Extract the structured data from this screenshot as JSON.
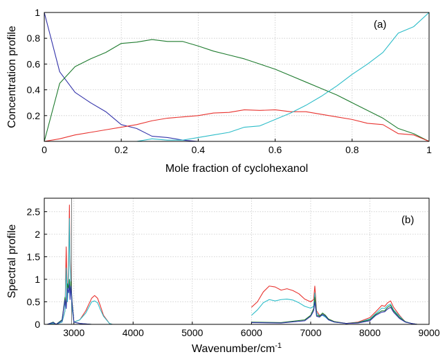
{
  "chart_data": [
    {
      "type": "line",
      "panel_tag": "(a)",
      "xlabel": "Mole fraction of cyclohexanol",
      "ylabel": "Concentration profile",
      "xlim": [
        0,
        1
      ],
      "ylim": [
        0,
        1
      ],
      "xticks": [
        "0",
        "0.2",
        "0.4",
        "0.6",
        "0.8",
        "1"
      ],
      "yticks": [
        "0.2",
        "0.4",
        "0.6",
        "0.8",
        "1"
      ],
      "ytick_values": [
        0.2,
        0.4,
        0.6,
        0.8,
        1.0
      ],
      "xtick_values": [
        0,
        0.2,
        0.4,
        0.6,
        0.8,
        1.0
      ],
      "grid": true,
      "series": [
        {
          "color": "#3333aa",
          "x": [
            0,
            0.04,
            0.08,
            0.12,
            0.16,
            0.2,
            0.24,
            0.28,
            0.32,
            0.36,
            0.4
          ],
          "y": [
            1.0,
            0.54,
            0.38,
            0.3,
            0.23,
            0.13,
            0.1,
            0.04,
            0.03,
            0.01,
            0.0
          ]
        },
        {
          "color": "#1e7b2e",
          "x": [
            0,
            0.04,
            0.08,
            0.12,
            0.16,
            0.2,
            0.24,
            0.28,
            0.32,
            0.36,
            0.4,
            0.44,
            0.48,
            0.52,
            0.56,
            0.6,
            0.64,
            0.68,
            0.72,
            0.76,
            0.8,
            0.84,
            0.88,
            0.92,
            0.96,
            1.0
          ],
          "y": [
            0.0,
            0.45,
            0.58,
            0.64,
            0.69,
            0.76,
            0.77,
            0.79,
            0.775,
            0.775,
            0.74,
            0.7,
            0.67,
            0.64,
            0.6,
            0.56,
            0.51,
            0.46,
            0.41,
            0.36,
            0.3,
            0.24,
            0.18,
            0.1,
            0.06,
            0.0
          ]
        },
        {
          "color": "#e8322e",
          "x": [
            0,
            0.04,
            0.08,
            0.12,
            0.16,
            0.2,
            0.24,
            0.28,
            0.32,
            0.36,
            0.4,
            0.44,
            0.48,
            0.52,
            0.56,
            0.6,
            0.64,
            0.68,
            0.72,
            0.76,
            0.8,
            0.84,
            0.88,
            0.92,
            0.96,
            1.0
          ],
          "y": [
            0.0,
            0.02,
            0.05,
            0.07,
            0.09,
            0.11,
            0.13,
            0.16,
            0.18,
            0.19,
            0.2,
            0.22,
            0.225,
            0.245,
            0.24,
            0.245,
            0.23,
            0.23,
            0.21,
            0.19,
            0.17,
            0.14,
            0.13,
            0.06,
            0.05,
            0.0
          ]
        },
        {
          "color": "#2bbcc8",
          "x": [
            0.24,
            0.28,
            0.32,
            0.36,
            0.4,
            0.44,
            0.48,
            0.52,
            0.56,
            0.6,
            0.64,
            0.68,
            0.72,
            0.76,
            0.8,
            0.84,
            0.88,
            0.92,
            0.96,
            1.0
          ],
          "y": [
            0.0,
            0.02,
            0.01,
            0.01,
            0.03,
            0.05,
            0.07,
            0.11,
            0.12,
            0.17,
            0.22,
            0.28,
            0.35,
            0.43,
            0.52,
            0.6,
            0.69,
            0.84,
            0.89,
            1.0
          ]
        }
      ]
    },
    {
      "type": "line",
      "panel_tag": "(b)",
      "xlabel": "Wavenumber/cm",
      "xlabel_superscript": "-1",
      "ylabel": "Spectral profile",
      "xlim": [
        2500,
        9000
      ],
      "ylim": [
        0,
        2.8
      ],
      "xticks": [
        "3000",
        "4000",
        "5000",
        "6000",
        "7000",
        "8000",
        "9000"
      ],
      "xtick_values": [
        3000,
        4000,
        5000,
        6000,
        7000,
        8000,
        9000
      ],
      "yticks": [
        "0",
        "0.5",
        "1",
        "1.5",
        "2",
        "2.5"
      ],
      "ytick_values": [
        0,
        0.5,
        1.0,
        1.5,
        2.0,
        2.5
      ],
      "grid": true,
      "series": [
        {
          "color": "#e8322e",
          "x": [
            2550,
            2650,
            2700,
            2800,
            2850,
            2870,
            2890,
            2910,
            2925,
            2935,
            2950,
            2970,
            3000,
            3100,
            3200,
            3300,
            3350,
            3400,
            3450,
            3500,
            3600,
            3650,
            6000,
            6100,
            6200,
            6300,
            6400,
            6500,
            6600,
            6700,
            6800,
            6900,
            7000,
            7050,
            7070,
            7100,
            7150,
            7200,
            7250,
            7300,
            7400,
            7600,
            7800,
            8000,
            8100,
            8200,
            8250,
            8300,
            8350,
            8400,
            8500,
            8600,
            8700,
            8800
          ],
          "y": [
            0.0,
            0.02,
            0.0,
            0.05,
            0.3,
            1.72,
            0.5,
            1.3,
            2.65,
            1.5,
            0.95,
            0.4,
            0.05,
            0.1,
            0.3,
            0.58,
            0.64,
            0.58,
            0.4,
            0.2,
            0.02,
            0.0,
            0.38,
            0.5,
            0.72,
            0.85,
            0.83,
            0.76,
            0.79,
            0.75,
            0.68,
            0.56,
            0.5,
            0.55,
            0.85,
            0.3,
            0.2,
            0.22,
            0.18,
            0.12,
            0.06,
            0.02,
            0.05,
            0.15,
            0.28,
            0.42,
            0.4,
            0.48,
            0.52,
            0.38,
            0.2,
            0.05,
            0.02,
            0.0
          ]
        },
        {
          "color": "#2bbcc8",
          "x": [
            2550,
            2650,
            2700,
            2800,
            2850,
            2870,
            2890,
            2910,
            2925,
            2935,
            2950,
            2970,
            3000,
            3100,
            3200,
            3300,
            3350,
            3400,
            3450,
            3500,
            3600,
            3650,
            6000,
            6100,
            6200,
            6300,
            6400,
            6500,
            6600,
            6700,
            6800,
            6900,
            7000,
            7050,
            7070,
            7100,
            7150,
            7200,
            7250,
            7300,
            7400,
            7600,
            7800,
            8000,
            8100,
            8200,
            8250,
            8300,
            8350,
            8400,
            8500,
            8600,
            8700,
            8800
          ],
          "y": [
            0.0,
            0.02,
            0.0,
            0.05,
            0.3,
            1.25,
            0.5,
            1.1,
            2.35,
            1.3,
            0.85,
            0.35,
            0.05,
            0.1,
            0.25,
            0.5,
            0.52,
            0.48,
            0.32,
            0.18,
            0.02,
            0.0,
            0.2,
            0.32,
            0.48,
            0.55,
            0.52,
            0.55,
            0.56,
            0.54,
            0.48,
            0.4,
            0.36,
            0.4,
            0.7,
            0.25,
            0.18,
            0.2,
            0.16,
            0.1,
            0.05,
            0.02,
            0.04,
            0.12,
            0.24,
            0.36,
            0.35,
            0.42,
            0.45,
            0.32,
            0.18,
            0.05,
            0.02,
            0.0
          ]
        },
        {
          "color": "#1e7b2e",
          "x": [
            2550,
            2650,
            2700,
            2800,
            2850,
            2870,
            2890,
            2910,
            2925,
            2935,
            2950,
            2970,
            3000,
            3100,
            3300,
            3600,
            6000,
            6500,
            6900,
            7000,
            7050,
            7070,
            7100,
            7150,
            7200,
            7250,
            7300,
            7400,
            7600,
            7800,
            8000,
            8100,
            8200,
            8250,
            8300,
            8350,
            8400,
            8500,
            8600,
            8700,
            8800
          ],
          "y": [
            0.0,
            0.05,
            0.0,
            0.1,
            0.6,
            0.4,
            0.9,
            0.8,
            1.0,
            0.6,
            0.95,
            0.5,
            0.05,
            0.02,
            0.0,
            0.0,
            0.05,
            0.04,
            0.1,
            0.2,
            0.35,
            0.6,
            0.2,
            0.18,
            0.25,
            0.2,
            0.12,
            0.06,
            0.02,
            0.04,
            0.1,
            0.22,
            0.3,
            0.3,
            0.38,
            0.42,
            0.3,
            0.15,
            0.06,
            0.02,
            0.0
          ]
        },
        {
          "color": "#3333aa",
          "x": [
            2550,
            2650,
            2700,
            2800,
            2850,
            2870,
            2890,
            2910,
            2925,
            2935,
            2950,
            2970,
            3000,
            3100,
            3300,
            3600,
            6000,
            6500,
            6900,
            7000,
            7050,
            7070,
            7100,
            7150,
            7200,
            7250,
            7300,
            7400,
            7600,
            7800,
            8000,
            8100,
            8200,
            8250,
            8300,
            8350,
            8400,
            8500,
            8600,
            8700,
            8800
          ],
          "y": [
            0.0,
            0.04,
            0.0,
            0.08,
            0.55,
            0.35,
            0.8,
            0.7,
            0.9,
            0.55,
            0.85,
            0.45,
            0.05,
            0.02,
            0.0,
            0.0,
            0.04,
            0.03,
            0.08,
            0.18,
            0.3,
            0.5,
            0.18,
            0.16,
            0.22,
            0.18,
            0.1,
            0.05,
            0.02,
            0.03,
            0.08,
            0.2,
            0.27,
            0.28,
            0.34,
            0.38,
            0.27,
            0.13,
            0.05,
            0.02,
            0.0
          ]
        }
      ]
    }
  ]
}
